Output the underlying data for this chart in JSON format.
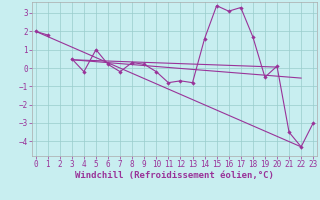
{
  "xlabel": "Windchill (Refroidissement éolien,°C)",
  "bg_color": "#c8eef0",
  "grid_color": "#99cccc",
  "line_color": "#993399",
  "text_color": "#993399",
  "x_data": [
    0,
    1,
    2,
    3,
    4,
    5,
    6,
    7,
    8,
    9,
    10,
    11,
    12,
    13,
    14,
    15,
    16,
    17,
    18,
    19,
    20,
    21,
    22,
    23
  ],
  "y_series1": [
    2.0,
    1.8,
    null,
    0.5,
    -0.2,
    1.0,
    0.2,
    -0.2,
    0.3,
    0.2,
    -0.2,
    -0.8,
    -0.7,
    -0.8,
    1.6,
    3.4,
    3.1,
    3.3,
    1.7,
    -0.5,
    0.1,
    -3.5,
    -4.3,
    -3.0
  ],
  "reg_line1_x": [
    0,
    22
  ],
  "reg_line1_y": [
    2.0,
    -4.3
  ],
  "reg_line2_x": [
    3,
    20
  ],
  "reg_line2_y": [
    0.45,
    0.05
  ],
  "reg_line3_x": [
    3,
    22
  ],
  "reg_line3_y": [
    0.45,
    -0.55
  ],
  "ylim": [
    -4.8,
    3.6
  ],
  "xlim": [
    -0.3,
    23.3
  ],
  "yticks": [
    -4,
    -3,
    -2,
    -1,
    0,
    1,
    2,
    3
  ],
  "xticks": [
    0,
    1,
    2,
    3,
    4,
    5,
    6,
    7,
    8,
    9,
    10,
    11,
    12,
    13,
    14,
    15,
    16,
    17,
    18,
    19,
    20,
    21,
    22,
    23
  ],
  "tick_fontsize": 5.5,
  "xlabel_fontsize": 6.5,
  "linewidth": 0.8,
  "markersize": 2.2
}
